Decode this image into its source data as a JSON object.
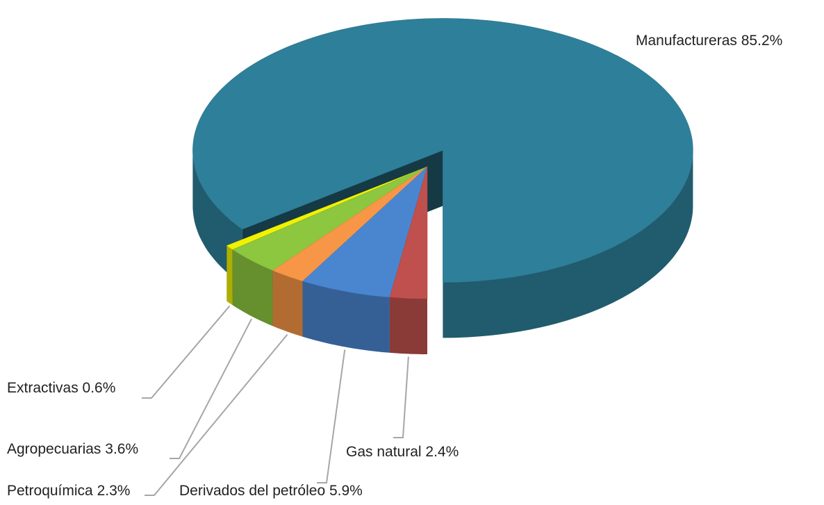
{
  "chart_data": {
    "type": "pie3d",
    "categories": [
      "Gas natural",
      "Derivados del petróleo",
      "Petroquímica",
      "Agropecuarias",
      "Extractivas",
      "Manufactureras"
    ],
    "values": [
      2.4,
      5.9,
      2.3,
      3.6,
      0.6,
      85.2
    ],
    "value_labels": [
      "2.4%",
      "5.9%",
      "2.3%",
      "3.6%",
      "0.6%",
      "85.2%"
    ],
    "colors": [
      "#c0504d",
      "#4a86d0",
      "#f79646",
      "#8dc63f",
      "#f2f200",
      "#2e7f99"
    ]
  }
}
